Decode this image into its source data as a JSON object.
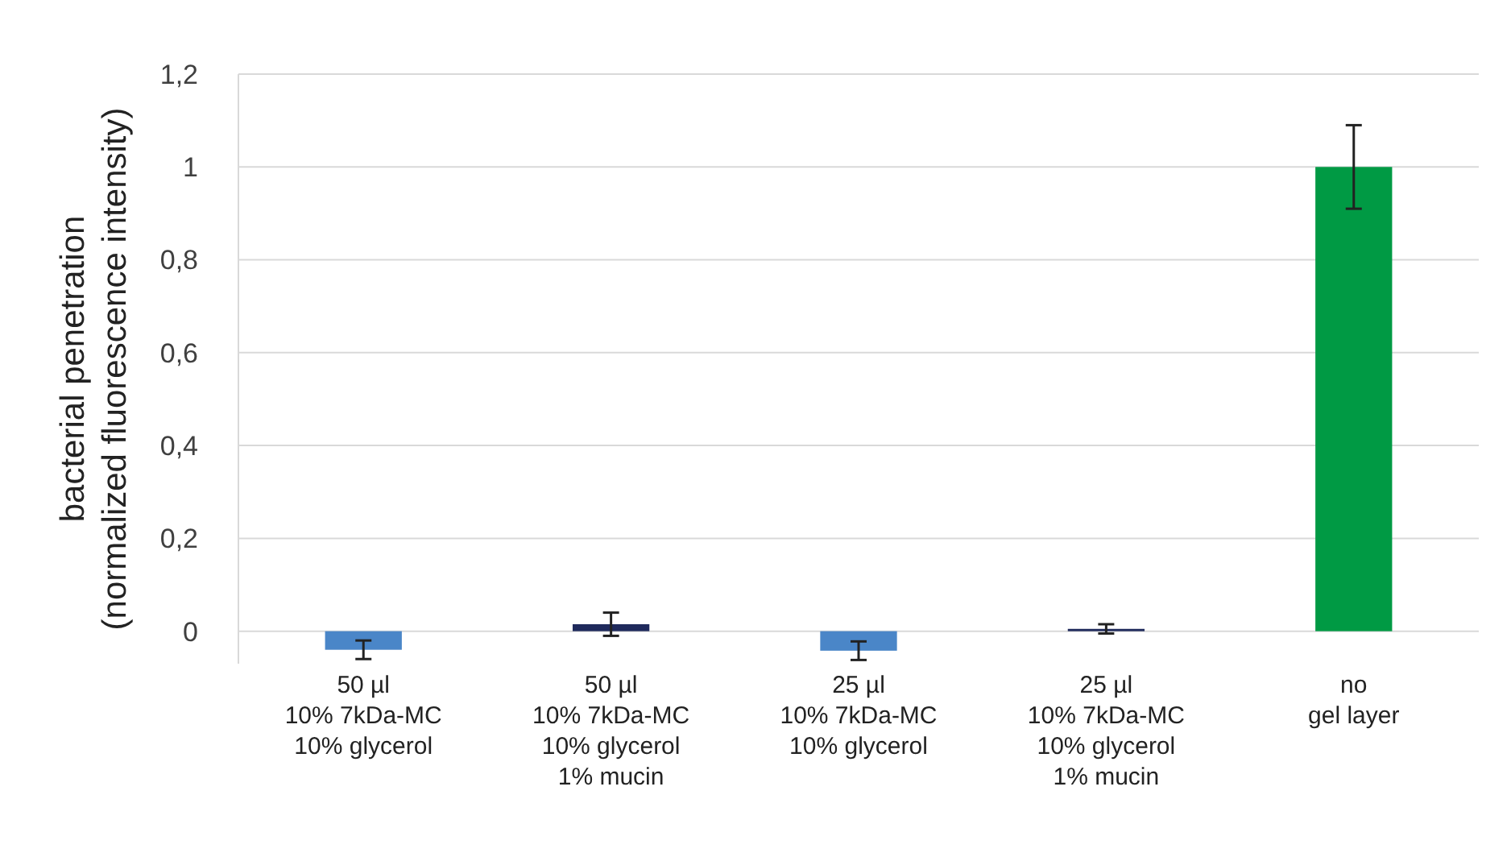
{
  "chart_data": {
    "type": "bar",
    "categories": [
      "50 µl\n10% 7kDa-MC\n10% glycerol",
      "50 µl\n10% 7kDa-MC\n10% glycerol\n1% mucin",
      "25 µl\n10% 7kDa-MC\n10% glycerol",
      "25 µl\n10% 7kDa-MC\n10% glycerol\n1% mucin",
      "no\ngel layer"
    ],
    "values": [
      -0.04,
      0.015,
      -0.042,
      0.005,
      1.0
    ],
    "errors": [
      0.02,
      0.025,
      0.02,
      0.01,
      0.09
    ],
    "colors": [
      "#4a86c8",
      "#1f2a5c",
      "#4a86c8",
      "#1f2a5c",
      "#009a44"
    ],
    "ylabel": "bacterial penetration\n(normalized fluorescence intensity)",
    "ylim": [
      -0.07,
      1.2
    ],
    "yticks": [
      0,
      {
        "value": 0.2,
        "label": "0,2"
      },
      {
        "value": 0.4,
        "label": "0,4"
      },
      {
        "value": 0.6,
        "label": "0,6"
      },
      {
        "value": 0.8,
        "label": "0,8"
      },
      1,
      {
        "value": 1.2,
        "label": "1,2"
      }
    ],
    "grid": "y"
  }
}
